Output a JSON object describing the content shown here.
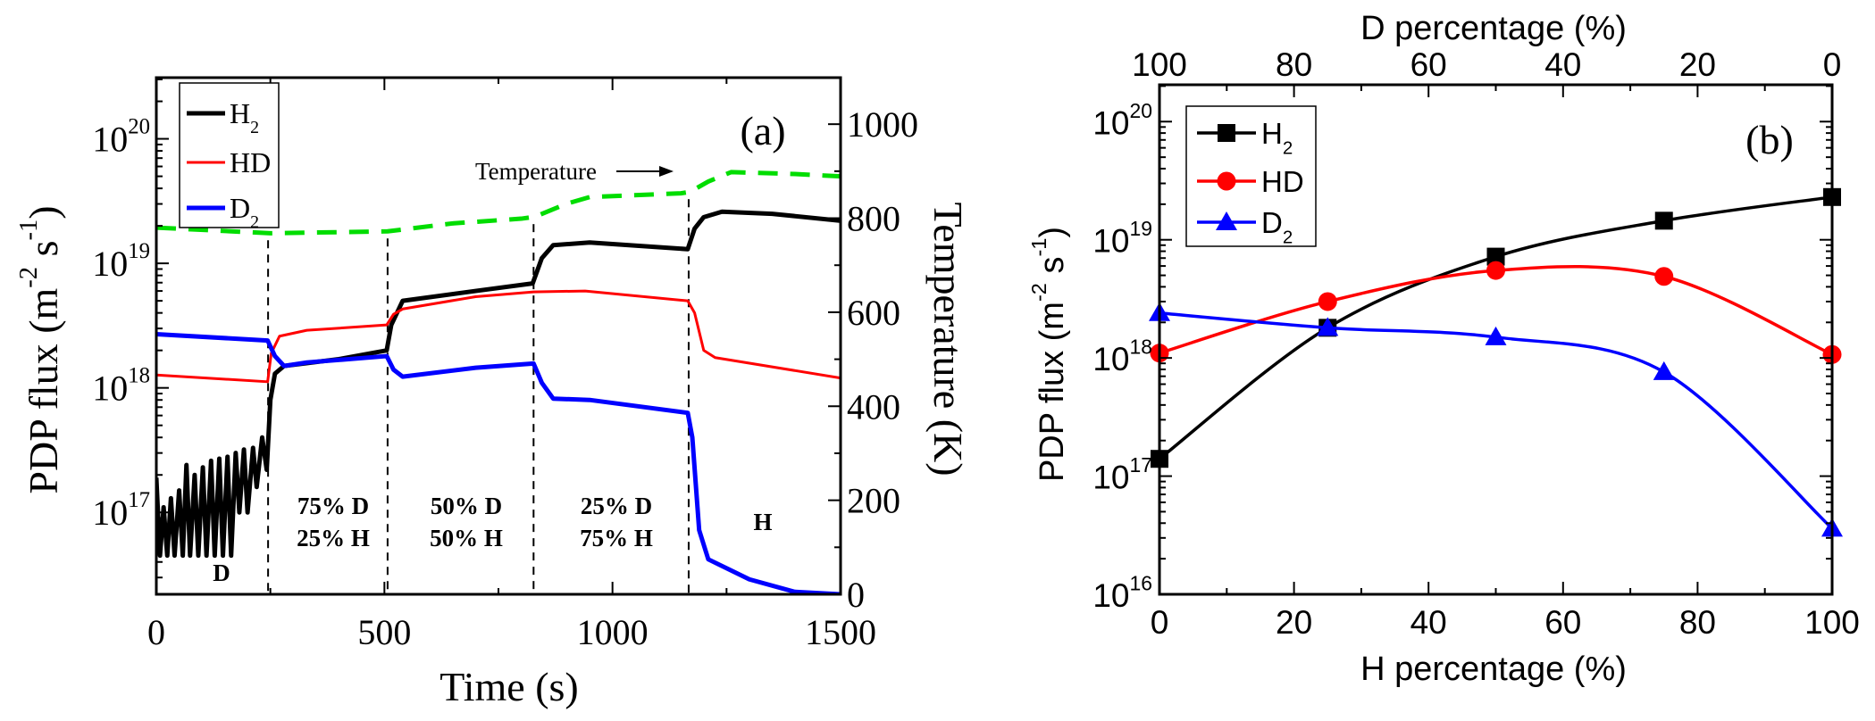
{
  "chart_data": [
    {
      "panel_label": "(a)",
      "type": "line",
      "xlabel": "Time (s)",
      "ylabel": "PDP flux (m^{-2} s^{-1})",
      "y2label": "Temperature (K)",
      "xlim": [
        0,
        1500
      ],
      "ylim": [
        2.2e+16,
        3.1e+20
      ],
      "yscale": "log",
      "y2lim": [
        0,
        1099
      ],
      "xticks": [
        0,
        500,
        1000,
        1500
      ],
      "yticks": [
        "10^{17}",
        "10^{18}",
        "10^{19}",
        "10^{20}"
      ],
      "ytick_values": [
        1e+17,
        1e+18,
        1e+19,
        1e+20
      ],
      "y2ticks": [
        0,
        200,
        400,
        600,
        800,
        1000
      ],
      "grid": false,
      "legend_position": "top-left",
      "series": [
        {
          "name": "H_{2}",
          "color": "#000000",
          "axis": "left",
          "points": [
            [
              0,
              1.9e+17
            ],
            [
              8,
              4.5e+16
            ],
            [
              16,
              1.1e+17
            ],
            [
              24,
              4.5e+16
            ],
            [
              32,
              1.3e+17
            ],
            [
              40,
              4.5e+16
            ],
            [
              50,
              1.5e+17
            ],
            [
              58,
              4.5e+16
            ],
            [
              66,
              2.4e+17
            ],
            [
              74,
              4.5e+16
            ],
            [
              84,
              2e+17
            ],
            [
              92,
              4.5e+16
            ],
            [
              102,
              2.3e+17
            ],
            [
              110,
              4.5e+16
            ],
            [
              120,
              2.6e+17
            ],
            [
              128,
              4.5e+16
            ],
            [
              138,
              2.7e+17
            ],
            [
              146,
              4.5e+16
            ],
            [
              156,
              2.8e+17
            ],
            [
              164,
              4.5e+16
            ],
            [
              174,
              3e+17
            ],
            [
              182,
              1e+17
            ],
            [
              192,
              3.2e+17
            ],
            [
              200,
              1e+17
            ],
            [
              212,
              3.3e+17
            ],
            [
              220,
              1.6e+17
            ],
            [
              232,
              4e+17
            ],
            [
              242,
              2.2e+17
            ],
            [
              250,
              8e+17
            ],
            [
              260,
              1.3e+18
            ],
            [
              280,
              1.5e+18
            ],
            [
              400,
              1.7e+18
            ],
            [
              505,
              2e+18
            ],
            [
              515,
              3.2e+18
            ],
            [
              540,
              5e+18
            ],
            [
              700,
              6e+18
            ],
            [
              825,
              6.9e+18
            ],
            [
              845,
              1.1e+19
            ],
            [
              870,
              1.4e+19
            ],
            [
              950,
              1.47e+19
            ],
            [
              1165,
              1.3e+19
            ],
            [
              1180,
              1.9e+19
            ],
            [
              1200,
              2.35e+19
            ],
            [
              1240,
              2.6e+19
            ],
            [
              1350,
              2.5e+19
            ],
            [
              1500,
              2.2e+19
            ]
          ]
        },
        {
          "name": "HD",
          "color": "#ff0000",
          "axis": "left",
          "points": [
            [
              0,
              1.27e+18
            ],
            [
              244,
              1.12e+18
            ],
            [
              252,
              1.9e+18
            ],
            [
              270,
              2.6e+18
            ],
            [
              330,
              2.9e+18
            ],
            [
              505,
              3.2e+18
            ],
            [
              520,
              3.9e+18
            ],
            [
              540,
              4.3e+18
            ],
            [
              700,
              5.4e+18
            ],
            [
              827,
              5.9e+18
            ],
            [
              940,
              6e+18
            ],
            [
              1165,
              5e+18
            ],
            [
              1180,
              4e+18
            ],
            [
              1200,
              2e+18
            ],
            [
              1225,
              1.75e+18
            ],
            [
              1500,
              1.2e+18
            ]
          ]
        },
        {
          "name": "D_{2}",
          "color": "#0000ff",
          "axis": "left",
          "points": [
            [
              0,
              2.7e+18
            ],
            [
              244,
              2.4e+18
            ],
            [
              260,
              1.8e+18
            ],
            [
              280,
              1.5e+18
            ],
            [
              330,
              1.6e+18
            ],
            [
              505,
              1.8e+18
            ],
            [
              520,
              1.4e+18
            ],
            [
              540,
              1.23e+18
            ],
            [
              700,
              1.45e+18
            ],
            [
              827,
              1.57e+18
            ],
            [
              845,
              1.1e+18
            ],
            [
              870,
              8.2e+17
            ],
            [
              950,
              8e+17
            ],
            [
              1165,
              6.3e+17
            ],
            [
              1175,
              4e+17
            ],
            [
              1190,
              7.2e+16
            ],
            [
              1210,
              4.2e+16
            ],
            [
              1300,
              2.9e+16
            ],
            [
              1400,
              2.3e+16
            ],
            [
              1500,
              2.2e+16
            ]
          ]
        },
        {
          "name": "Temperature",
          "color": "#00dd00",
          "axis": "right",
          "dashed": true,
          "points": [
            [
              0,
              780
            ],
            [
              250,
              768
            ],
            [
              507,
              772
            ],
            [
              650,
              789
            ],
            [
              800,
              799
            ],
            [
              830,
              803
            ],
            [
              900,
              831
            ],
            [
              950,
              845
            ],
            [
              1150,
              853
            ],
            [
              1170,
              856
            ],
            [
              1210,
              878
            ],
            [
              1260,
              898
            ],
            [
              1400,
              894
            ],
            [
              1500,
              889
            ]
          ]
        }
      ],
      "dividers": [
        245,
        507,
        827,
        1167
      ],
      "annotations": {
        "temperature_arrow": "Temperature",
        "regions": [
          {
            "lines": [
              "D"
            ]
          },
          {
            "lines": [
              "75% D",
              "25% H"
            ]
          },
          {
            "lines": [
              "50% D",
              "50% H"
            ]
          },
          {
            "lines": [
              "25% D",
              "75% H"
            ]
          },
          {
            "lines": [
              "H"
            ]
          }
        ]
      }
    },
    {
      "panel_label": "(b)",
      "type": "line",
      "xlabel": "H percentage (%)",
      "x2label": "D percentage (%)",
      "ylabel": "PDP flux (m^{-2} s^{-1})",
      "xlim": [
        0,
        100
      ],
      "x2lim": [
        100,
        0
      ],
      "ylim": [
        1e+16,
        2.05e+20
      ],
      "yscale": "log",
      "xticks": [
        0,
        20,
        40,
        60,
        80,
        100
      ],
      "x2ticks": [
        100,
        80,
        60,
        40,
        20,
        0
      ],
      "yticks": [
        "10^{16}",
        "10^{17}",
        "10^{18}",
        "10^{19}",
        "10^{20}"
      ],
      "ytick_values": [
        1e+16,
        1e+17,
        1e+18,
        1e+19,
        1e+20
      ],
      "grid": false,
      "legend_position": "top-left",
      "x": [
        0,
        25,
        50,
        75,
        100
      ],
      "series": [
        {
          "name": "H_{2}",
          "color": "#000000",
          "marker": "square",
          "values": [
            1.4e+17,
            1.8e+18,
            7.2e+18,
            1.45e+19,
            2.3e+19
          ]
        },
        {
          "name": "HD",
          "color": "#ff0000",
          "marker": "circle",
          "values": [
            1.1e+18,
            3e+18,
            5.5e+18,
            4.9e+18,
            1.07e+18
          ]
        },
        {
          "name": "D_{2}",
          "color": "#0000ff",
          "marker": "triangle",
          "values": [
            2.4e+18,
            1.8e+18,
            1.5e+18,
            7.6e+17,
            3.6e+16
          ]
        }
      ]
    }
  ]
}
